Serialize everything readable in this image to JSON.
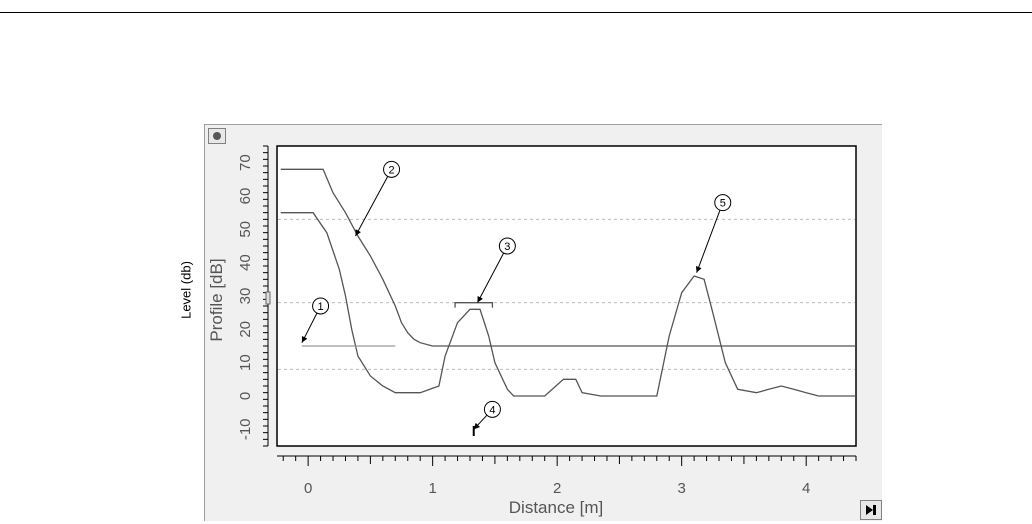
{
  "outer_ylabel": "Level (db)",
  "chart_data": {
    "type": "line",
    "title": "",
    "xlabel": "Distance [m]",
    "ylabel": "Profile [dB]",
    "xlim": [
      -0.25,
      4.4
    ],
    "ylim": [
      -15,
      75
    ],
    "x_ticks": [
      0,
      1,
      2,
      3,
      4
    ],
    "y_ticks": [
      -10,
      0,
      10,
      20,
      30,
      40,
      50,
      60,
      70
    ],
    "grid": "horizontal-dotted",
    "series": [
      {
        "key": "upper",
        "x": [
          -0.22,
          0.12,
          0.2,
          0.3,
          0.4,
          0.5,
          0.6,
          0.7,
          0.75,
          0.8,
          0.85,
          0.9,
          1.0,
          1.5,
          4.4
        ],
        "values": [
          68,
          68,
          61,
          55,
          48,
          42,
          35,
          27,
          22,
          19,
          17,
          16,
          15,
          15,
          15
        ]
      },
      {
        "key": "lower",
        "x": [
          -0.22,
          0.04,
          0.15,
          0.25,
          0.3,
          0.35,
          0.4,
          0.5,
          0.6,
          0.7,
          0.9,
          1.05,
          1.1,
          1.2,
          1.3,
          1.38,
          1.45,
          1.5,
          1.6,
          1.65,
          1.9,
          2.05,
          2.15,
          2.2,
          2.35,
          2.8,
          2.9,
          3.0,
          3.1,
          3.18,
          3.25,
          3.35,
          3.45,
          3.6,
          3.7,
          3.8,
          3.9,
          4.0,
          4.1,
          4.4
        ],
        "values": [
          55,
          55,
          49,
          38,
          30,
          20,
          12,
          6,
          3,
          1,
          1,
          3,
          12,
          22,
          26,
          26,
          18,
          10,
          2,
          0,
          0,
          5,
          5,
          1,
          0,
          0,
          18,
          31,
          36,
          35,
          25,
          10,
          2,
          1,
          2,
          3,
          2,
          1,
          0,
          0
        ]
      },
      {
        "key": "reference",
        "x": [
          -0.05,
          0.7
        ],
        "values": [
          15,
          15
        ]
      }
    ],
    "bracket": {
      "x": [
        1.18,
        1.48
      ],
      "y": 28
    },
    "marker": {
      "x": 1.33,
      "y": -12
    },
    "annotations": [
      {
        "label": "1",
        "target_x": -0.05,
        "target_y": 16,
        "text_x": 0.1,
        "text_y": 27
      },
      {
        "label": "2",
        "target_x": 0.38,
        "target_y": 48,
        "text_x": 0.67,
        "text_y": 68
      },
      {
        "label": "3",
        "target_x": 1.36,
        "target_y": 28,
        "text_x": 1.6,
        "text_y": 45
      },
      {
        "label": "4",
        "target_x": 1.33,
        "target_y": -10,
        "text_x": 1.48,
        "text_y": -4
      },
      {
        "label": "5",
        "target_x": 3.12,
        "target_y": 37,
        "text_x": 3.33,
        "text_y": 58
      }
    ]
  }
}
